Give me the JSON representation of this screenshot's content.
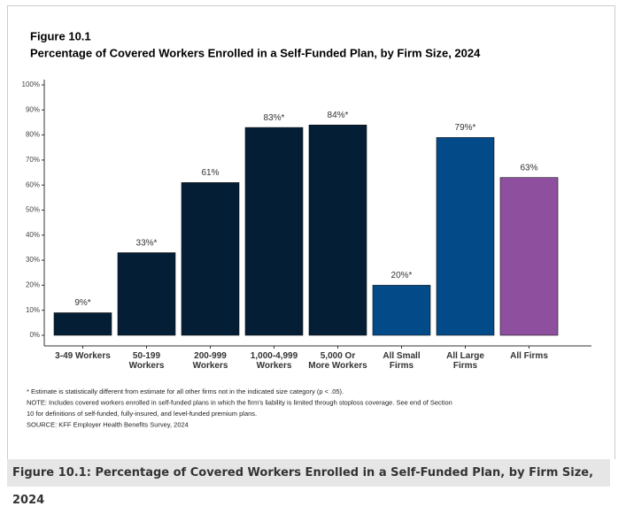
{
  "chart_data": {
    "type": "bar",
    "figure_label": "Figure 10.1",
    "title": "Percentage of Covered Workers Enrolled in a Self-Funded Plan, by Firm Size, 2024",
    "categories": [
      "3-49 Workers",
      "50-199\nWorkers",
      "200-999\nWorkers",
      "1,000-4,999\nWorkers",
      "5,000 Or\nMore Workers",
      "All Small\nFirms",
      "All Large\nFirms",
      "All Firms"
    ],
    "values": [
      9,
      33,
      61,
      83,
      84,
      20,
      79,
      63
    ],
    "value_labels": [
      "9%*",
      "33%*",
      "61%",
      "83%*",
      "84%*",
      "20%*",
      "79%*",
      "63%"
    ],
    "colors": [
      "#041e36",
      "#041e36",
      "#041e36",
      "#041e36",
      "#041e36",
      "#034a89",
      "#034a89",
      "#8e4f9f"
    ],
    "ylim": [
      0,
      100
    ],
    "yticks": [
      {
        "value": 0,
        "label": "0%"
      },
      {
        "value": 10,
        "label": "10%"
      },
      {
        "value": 20,
        "label": "20%"
      },
      {
        "value": 30,
        "label": "30%"
      },
      {
        "value": 40,
        "label": "40%"
      },
      {
        "value": 50,
        "label": "50%"
      },
      {
        "value": 60,
        "label": "60%"
      },
      {
        "value": 70,
        "label": "70%"
      },
      {
        "value": 80,
        "label": "80%"
      },
      {
        "value": 90,
        "label": "90%"
      },
      {
        "value": 100,
        "label": "100%"
      }
    ],
    "notes": [
      "* Estimate is statistically different from estimate for all other firms not in the indicated size category (p < .05).",
      "NOTE: Includes covered workers enrolled in self-funded plans in which the firm's liability is limited through stoploss coverage. See end of Section",
      "10 for definitions of self-funded, fully-insured, and level-funded premium plans.",
      "SOURCE: KFF Employer Health Benefits Survey, 2024"
    ],
    "caption": "Figure 10.1: Percentage of Covered Workers Enrolled in a Self-Funded Plan, by Firm Size, 2024"
  }
}
